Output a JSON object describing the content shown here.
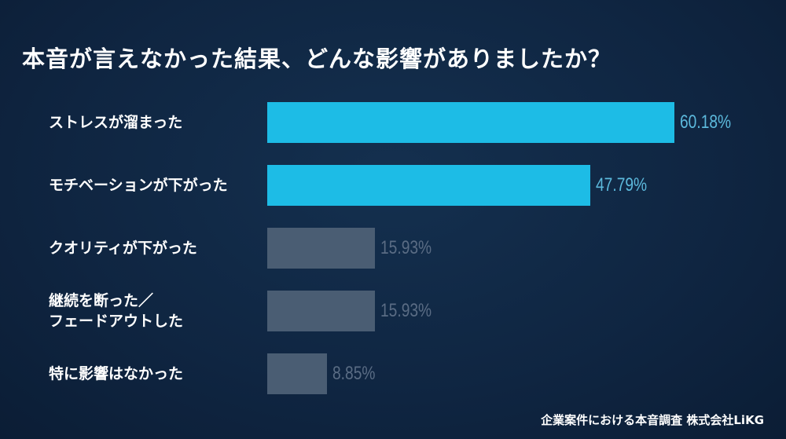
{
  "chart_data": {
    "type": "bar",
    "orientation": "horizontal",
    "title": "本音が言えなかった結果、どんな影響がありましたか？",
    "categories": [
      "ストレスが溜まった",
      "モチベーションが下がった",
      "クオリティが下がった",
      "継続を断った／\nフェードアウトした",
      "特に影響はなかった"
    ],
    "values": [
      60.18,
      47.79,
      15.93,
      15.93,
      8.85
    ],
    "value_labels": [
      "60.18%",
      "47.79%",
      "15.93%",
      "15.93%",
      "8.85%"
    ],
    "highlight": [
      true,
      true,
      false,
      false,
      false
    ],
    "unit": "%",
    "xlabel": "",
    "ylabel": "",
    "grid": false
  },
  "colors": {
    "highlight_bar": "#1dbce6",
    "highlight_label": "#5cb9dc",
    "muted_bar": "#4a5d73",
    "muted_label": "#5a6c84"
  },
  "source": "企業案件における本音調査  株式会社LiKG"
}
